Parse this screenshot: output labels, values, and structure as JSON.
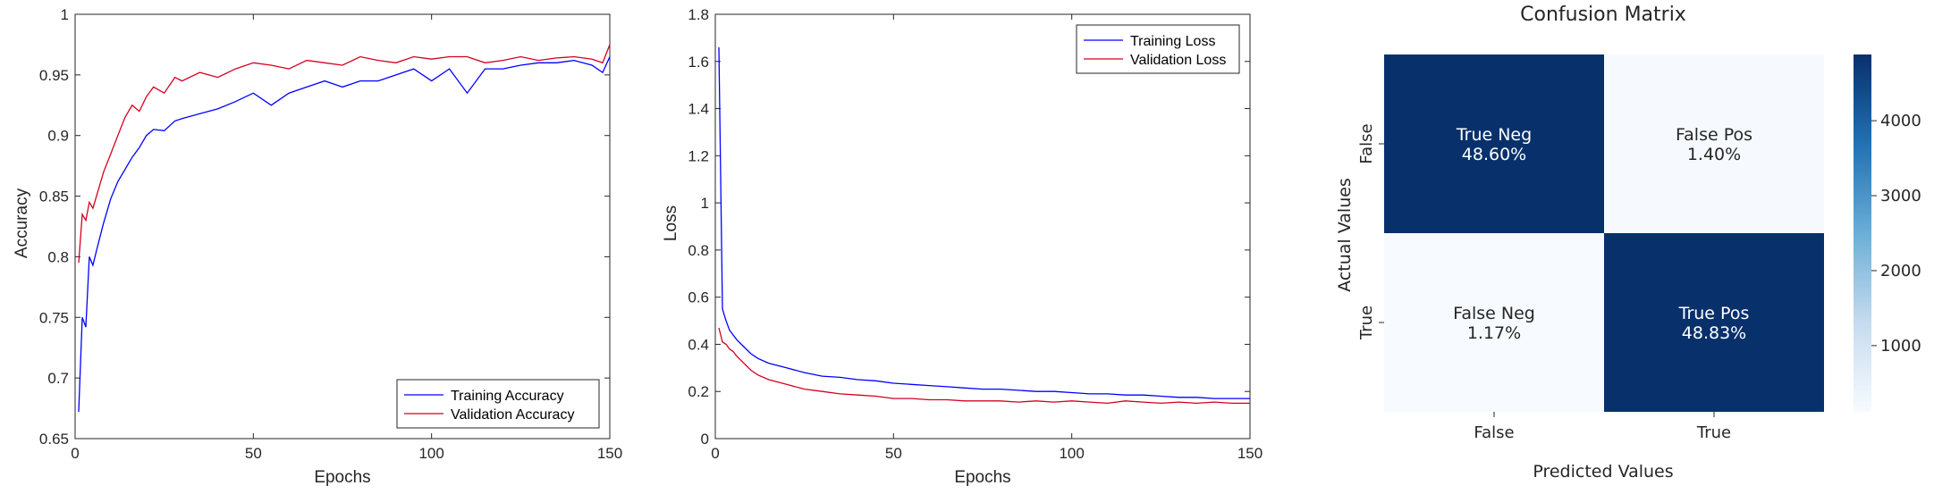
{
  "chart_data": [
    {
      "type": "line",
      "xlabel": "Epochs",
      "ylabel": "Accuracy",
      "xlim": [
        0,
        150
      ],
      "ylim": [
        0.65,
        1
      ],
      "xticks": [
        "0",
        "50",
        "100",
        "150"
      ],
      "yticks": [
        "0.65",
        "0.7",
        "0.75",
        "0.8",
        "0.85",
        "0.9",
        "0.95",
        "1"
      ],
      "legend_position": "bottom-right",
      "grid": false,
      "series": [
        {
          "name": "Training Accuracy",
          "color": "#0000ff",
          "x": [
            1,
            2,
            3,
            4,
            5,
            6,
            8,
            10,
            12,
            14,
            16,
            18,
            20,
            22,
            25,
            28,
            30,
            35,
            40,
            45,
            50,
            55,
            60,
            65,
            70,
            75,
            80,
            85,
            90,
            95,
            100,
            105,
            110,
            115,
            120,
            125,
            130,
            135,
            140,
            145,
            148,
            150
          ],
          "y": [
            0.672,
            0.75,
            0.742,
            0.8,
            0.793,
            0.805,
            0.828,
            0.848,
            0.862,
            0.872,
            0.882,
            0.89,
            0.9,
            0.905,
            0.904,
            0.912,
            0.914,
            0.918,
            0.922,
            0.928,
            0.935,
            0.925,
            0.935,
            0.94,
            0.945,
            0.94,
            0.945,
            0.945,
            0.95,
            0.955,
            0.945,
            0.955,
            0.935,
            0.955,
            0.955,
            0.958,
            0.96,
            0.96,
            0.962,
            0.958,
            0.952,
            0.965
          ]
        },
        {
          "name": "Validation Accuracy",
          "color": "#d40020",
          "x": [
            1,
            2,
            3,
            4,
            5,
            6,
            8,
            10,
            12,
            14,
            16,
            18,
            20,
            22,
            25,
            28,
            30,
            35,
            40,
            45,
            50,
            55,
            60,
            65,
            70,
            75,
            80,
            85,
            90,
            95,
            100,
            105,
            110,
            115,
            120,
            125,
            130,
            135,
            140,
            145,
            148,
            150
          ],
          "y": [
            0.795,
            0.835,
            0.83,
            0.845,
            0.84,
            0.85,
            0.87,
            0.885,
            0.9,
            0.915,
            0.925,
            0.92,
            0.932,
            0.94,
            0.935,
            0.948,
            0.945,
            0.952,
            0.948,
            0.955,
            0.96,
            0.958,
            0.955,
            0.962,
            0.96,
            0.958,
            0.965,
            0.962,
            0.96,
            0.965,
            0.963,
            0.965,
            0.965,
            0.96,
            0.962,
            0.965,
            0.962,
            0.964,
            0.965,
            0.963,
            0.96,
            0.975
          ]
        }
      ]
    },
    {
      "type": "line",
      "xlabel": "Epochs",
      "ylabel": "Loss",
      "xlim": [
        0,
        150
      ],
      "ylim": [
        0,
        1.8
      ],
      "xticks": [
        "0",
        "50",
        "100",
        "150"
      ],
      "yticks": [
        "0",
        "0.2",
        "0.4",
        "0.6",
        "0.8",
        "1",
        "1.2",
        "1.4",
        "1.6",
        "1.8"
      ],
      "legend_position": "top-right",
      "grid": false,
      "series": [
        {
          "name": "Training Loss",
          "color": "#0000ff",
          "x": [
            1,
            2,
            3,
            4,
            5,
            6,
            8,
            10,
            12,
            15,
            20,
            25,
            30,
            35,
            40,
            45,
            50,
            55,
            60,
            65,
            70,
            75,
            80,
            85,
            90,
            95,
            100,
            105,
            110,
            115,
            120,
            125,
            130,
            135,
            140,
            145,
            150
          ],
          "y": [
            1.66,
            0.55,
            0.5,
            0.46,
            0.44,
            0.42,
            0.39,
            0.36,
            0.34,
            0.32,
            0.3,
            0.28,
            0.265,
            0.26,
            0.25,
            0.245,
            0.235,
            0.23,
            0.225,
            0.22,
            0.215,
            0.21,
            0.21,
            0.205,
            0.2,
            0.2,
            0.195,
            0.19,
            0.19,
            0.185,
            0.185,
            0.18,
            0.175,
            0.175,
            0.17,
            0.17,
            0.17
          ]
        },
        {
          "name": "Validation Loss",
          "color": "#d40020",
          "x": [
            1,
            2,
            3,
            4,
            5,
            6,
            8,
            10,
            12,
            15,
            20,
            25,
            30,
            35,
            40,
            45,
            50,
            55,
            60,
            65,
            70,
            75,
            80,
            85,
            90,
            95,
            100,
            105,
            110,
            115,
            120,
            125,
            130,
            135,
            140,
            145,
            150
          ],
          "y": [
            0.47,
            0.41,
            0.4,
            0.38,
            0.37,
            0.35,
            0.32,
            0.29,
            0.27,
            0.25,
            0.23,
            0.21,
            0.2,
            0.19,
            0.185,
            0.18,
            0.17,
            0.17,
            0.165,
            0.165,
            0.16,
            0.16,
            0.16,
            0.155,
            0.16,
            0.155,
            0.16,
            0.155,
            0.15,
            0.16,
            0.155,
            0.15,
            0.155,
            0.15,
            0.155,
            0.15,
            0.15
          ]
        }
      ]
    },
    {
      "type": "heatmap",
      "title": "Confusion Matrix",
      "xlabel": "Predicted Values",
      "ylabel": "Actual Values",
      "x_categories": [
        "False",
        "True"
      ],
      "y_categories": [
        "False",
        "True"
      ],
      "values": [
        [
          4860,
          140
        ],
        [
          117,
          4883
        ]
      ],
      "cells": [
        [
          {
            "label": "True Neg",
            "pct": "48.60%"
          },
          {
            "label": "False Pos",
            "pct": "1.40%"
          }
        ],
        [
          {
            "label": "False Neg",
            "pct": "1.17%"
          },
          {
            "label": "True Pos",
            "pct": "48.83%"
          }
        ]
      ],
      "colorbar": {
        "min": 117,
        "max": 4883,
        "ticks": [
          1000,
          2000,
          3000,
          4000
        ],
        "tick_labels": [
          "1000",
          "2000",
          "3000",
          "4000"
        ],
        "colormap": [
          "#f7fbff",
          "#c6dbef",
          "#6baed6",
          "#2171b5",
          "#08306b"
        ]
      }
    }
  ]
}
